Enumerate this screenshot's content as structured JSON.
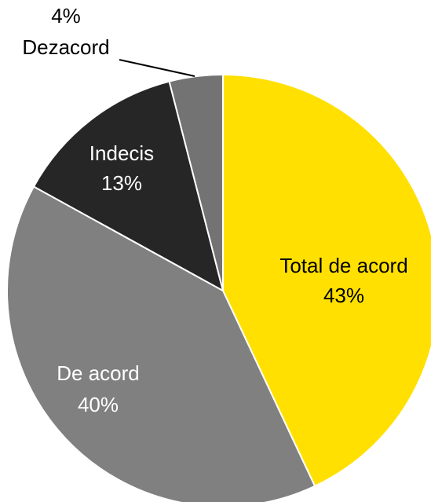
{
  "chart_data": {
    "type": "pie",
    "categories": [
      "Total de acord",
      "De acord",
      "Indecis",
      "Dezacord"
    ],
    "values": [
      43,
      40,
      13,
      4
    ],
    "value_labels": [
      "43%",
      "40%",
      "13%",
      "4%"
    ],
    "colors": [
      "#ffe000",
      "#808080",
      "#262626",
      "#737373"
    ],
    "label_colors": [
      "#000000",
      "#ffffff",
      "#ffffff",
      "#000000"
    ]
  }
}
